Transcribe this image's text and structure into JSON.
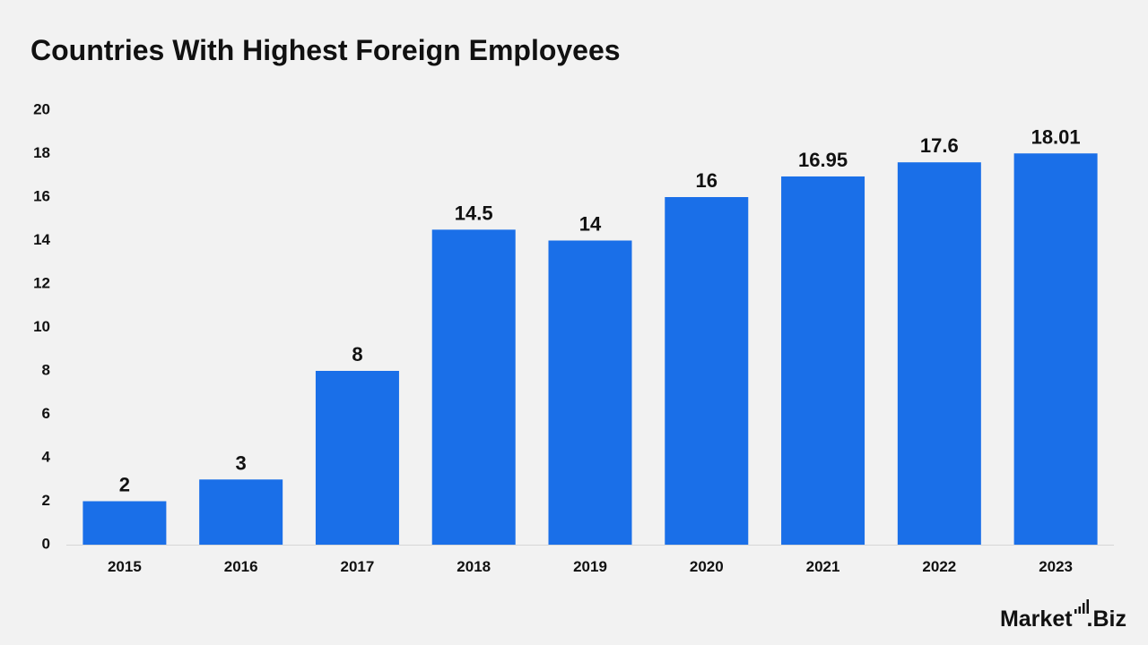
{
  "title": "Countries With Highest Foreign Employees",
  "brand": {
    "name_prefix": "Market",
    "name_suffix": ".Biz",
    "icon": "signal-bars-icon"
  },
  "colors": {
    "bar": "#1a6fe8",
    "text": "#111111",
    "background": "#f2f2f2",
    "axis_line": "#d6d6d6"
  },
  "chart_data": {
    "type": "bar",
    "title": "Countries With Highest Foreign Employees",
    "xlabel": "",
    "ylabel": "",
    "categories": [
      "2015",
      "2016",
      "2017",
      "2018",
      "2019",
      "2020",
      "2021",
      "2022",
      "2023"
    ],
    "values": [
      2,
      3,
      8,
      14.5,
      14,
      16,
      16.95,
      17.6,
      18.01
    ],
    "data_labels": [
      "2",
      "3",
      "8",
      "14.5",
      "14",
      "16",
      "16.95",
      "17.6",
      "18.01"
    ],
    "ylim": [
      0,
      20
    ],
    "yticks": [
      "0",
      "2",
      "4",
      "6",
      "8",
      "10",
      "12",
      "14",
      "16",
      "18",
      "20"
    ],
    "grid": false,
    "legend": "none"
  }
}
